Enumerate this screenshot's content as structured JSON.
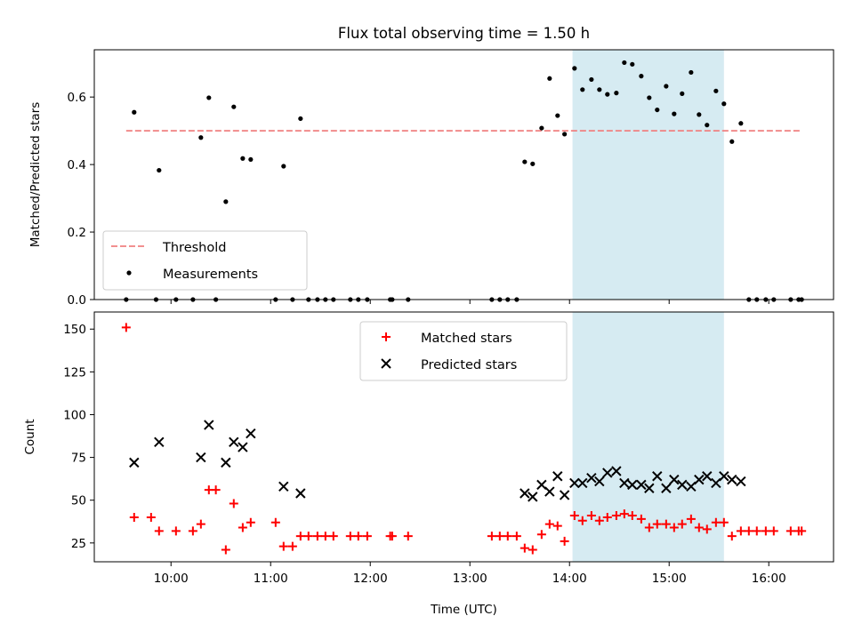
{
  "colors": {
    "threshold": "#f08080",
    "highlight": "#add8e6",
    "measurement": "#000000",
    "matched": "#ff0000",
    "predicted": "#000000"
  },
  "chart_data": [
    {
      "type": "scatter",
      "title": "Flux total observing time = 1.50 h",
      "xlabel": "",
      "ylabel": "Matched/Predicted stars",
      "x_units": "hours UTC",
      "xlim": [
        9.23,
        16.65
      ],
      "ylim": [
        0,
        0.74
      ],
      "yticks": [
        0.0,
        0.2,
        0.4,
        0.6
      ],
      "yticklabels": [
        "0.0",
        "0.2",
        "0.4",
        "0.6"
      ],
      "highlight_span": [
        14.03,
        15.55
      ],
      "threshold": {
        "name": "Threshold",
        "y": 0.5,
        "x_range": [
          9.55,
          16.33
        ]
      },
      "legend": {
        "position": "lower-left",
        "entries": [
          "Threshold",
          "Measurements"
        ]
      },
      "series": [
        {
          "name": "Measurements",
          "marker": "dot",
          "points": [
            [
              9.55,
              0.0
            ],
            [
              9.63,
              0.555
            ],
            [
              9.85,
              0.0
            ],
            [
              9.88,
              0.383
            ],
            [
              10.05,
              0.0
            ],
            [
              10.22,
              0.0
            ],
            [
              10.3,
              0.48
            ],
            [
              10.38,
              0.598
            ],
            [
              10.45,
              0.0
            ],
            [
              10.55,
              0.29
            ],
            [
              10.63,
              0.571
            ],
            [
              10.72,
              0.418
            ],
            [
              10.8,
              0.415
            ],
            [
              11.05,
              0.0
            ],
            [
              11.13,
              0.395
            ],
            [
              11.22,
              0.0
            ],
            [
              11.3,
              0.536
            ],
            [
              11.38,
              0.0
            ],
            [
              11.47,
              0.0
            ],
            [
              11.55,
              0.0
            ],
            [
              11.63,
              0.0
            ],
            [
              11.8,
              0.0
            ],
            [
              11.88,
              0.0
            ],
            [
              11.97,
              0.0
            ],
            [
              12.2,
              0.0
            ],
            [
              12.22,
              0.0
            ],
            [
              12.38,
              0.0
            ],
            [
              13.22,
              0.0
            ],
            [
              13.3,
              0.0
            ],
            [
              13.38,
              0.0
            ],
            [
              13.47,
              0.0
            ],
            [
              13.55,
              0.408
            ],
            [
              13.63,
              0.402
            ],
            [
              13.72,
              0.508
            ],
            [
              13.8,
              0.655
            ],
            [
              13.88,
              0.545
            ],
            [
              13.95,
              0.49
            ],
            [
              14.05,
              0.685
            ],
            [
              14.13,
              0.622
            ],
            [
              14.22,
              0.652
            ],
            [
              14.3,
              0.622
            ],
            [
              14.38,
              0.608
            ],
            [
              14.47,
              0.612
            ],
            [
              14.55,
              0.702
            ],
            [
              14.63,
              0.697
            ],
            [
              14.72,
              0.662
            ],
            [
              14.8,
              0.598
            ],
            [
              14.88,
              0.562
            ],
            [
              14.97,
              0.632
            ],
            [
              15.05,
              0.55
            ],
            [
              15.13,
              0.61
            ],
            [
              15.22,
              0.673
            ],
            [
              15.3,
              0.548
            ],
            [
              15.38,
              0.517
            ],
            [
              15.47,
              0.618
            ],
            [
              15.55,
              0.58
            ],
            [
              15.63,
              0.468
            ],
            [
              15.72,
              0.522
            ],
            [
              15.8,
              0.0
            ],
            [
              15.88,
              0.0
            ],
            [
              15.97,
              0.0
            ],
            [
              16.05,
              0.0
            ],
            [
              16.22,
              0.0
            ],
            [
              16.3,
              0.0
            ],
            [
              16.33,
              0.0
            ]
          ]
        }
      ]
    },
    {
      "type": "scatter",
      "title": "",
      "xlabel": "Time (UTC)",
      "ylabel": "Count",
      "x_units": "hours UTC",
      "xlim": [
        9.23,
        16.65
      ],
      "ylim": [
        14,
        160
      ],
      "xticks": [
        10,
        11,
        12,
        13,
        14,
        15,
        16
      ],
      "xticklabels": [
        "10:00",
        "11:00",
        "12:00",
        "13:00",
        "14:00",
        "15:00",
        "16:00"
      ],
      "yticks": [
        25,
        50,
        75,
        100,
        125,
        150
      ],
      "yticklabels": [
        "25",
        "50",
        "75",
        "100",
        "125",
        "150"
      ],
      "highlight_span": [
        14.03,
        15.55
      ],
      "legend": {
        "position": "upper-center",
        "entries": [
          "Matched stars",
          "Predicted stars"
        ]
      },
      "series": [
        {
          "name": "Matched stars",
          "marker": "plus",
          "points": [
            [
              9.55,
              151
            ],
            [
              9.63,
              40
            ],
            [
              9.8,
              40
            ],
            [
              9.88,
              32
            ],
            [
              10.05,
              32
            ],
            [
              10.22,
              32
            ],
            [
              10.3,
              36
            ],
            [
              10.38,
              56
            ],
            [
              10.45,
              56
            ],
            [
              10.55,
              21
            ],
            [
              10.63,
              48
            ],
            [
              10.72,
              34
            ],
            [
              10.8,
              37
            ],
            [
              11.05,
              37
            ],
            [
              11.13,
              23
            ],
            [
              11.22,
              23
            ],
            [
              11.3,
              29
            ],
            [
              11.38,
              29
            ],
            [
              11.47,
              29
            ],
            [
              11.55,
              29
            ],
            [
              11.63,
              29
            ],
            [
              11.8,
              29
            ],
            [
              11.88,
              29
            ],
            [
              11.97,
              29
            ],
            [
              12.2,
              29
            ],
            [
              12.22,
              29
            ],
            [
              12.38,
              29
            ],
            [
              13.22,
              29
            ],
            [
              13.3,
              29
            ],
            [
              13.38,
              29
            ],
            [
              13.47,
              29
            ],
            [
              13.55,
              22
            ],
            [
              13.63,
              21
            ],
            [
              13.72,
              30
            ],
            [
              13.8,
              36
            ],
            [
              13.88,
              35
            ],
            [
              13.95,
              26
            ],
            [
              14.05,
              41
            ],
            [
              14.13,
              38
            ],
            [
              14.22,
              41
            ],
            [
              14.3,
              38
            ],
            [
              14.38,
              40
            ],
            [
              14.47,
              41
            ],
            [
              14.55,
              42
            ],
            [
              14.63,
              41
            ],
            [
              14.72,
              39
            ],
            [
              14.8,
              34
            ],
            [
              14.88,
              36
            ],
            [
              14.97,
              36
            ],
            [
              15.05,
              34
            ],
            [
              15.13,
              36
            ],
            [
              15.22,
              39
            ],
            [
              15.3,
              34
            ],
            [
              15.38,
              33
            ],
            [
              15.47,
              37
            ],
            [
              15.55,
              37
            ],
            [
              15.63,
              29
            ],
            [
              15.72,
              32
            ],
            [
              15.8,
              32
            ],
            [
              15.88,
              32
            ],
            [
              15.97,
              32
            ],
            [
              16.05,
              32
            ],
            [
              16.22,
              32
            ],
            [
              16.3,
              32
            ],
            [
              16.33,
              32
            ]
          ]
        },
        {
          "name": "Predicted stars",
          "marker": "x",
          "points": [
            [
              9.63,
              72
            ],
            [
              9.88,
              84
            ],
            [
              10.3,
              75
            ],
            [
              10.38,
              94
            ],
            [
              10.55,
              72
            ],
            [
              10.63,
              84
            ],
            [
              10.72,
              81
            ],
            [
              10.8,
              89
            ],
            [
              11.13,
              58
            ],
            [
              11.3,
              54
            ],
            [
              13.55,
              54
            ],
            [
              13.63,
              52
            ],
            [
              13.72,
              59
            ],
            [
              13.8,
              55
            ],
            [
              13.88,
              64
            ],
            [
              13.95,
              53
            ],
            [
              14.05,
              60
            ],
            [
              14.13,
              60
            ],
            [
              14.22,
              63
            ],
            [
              14.3,
              61
            ],
            [
              14.38,
              66
            ],
            [
              14.47,
              67
            ],
            [
              14.55,
              60
            ],
            [
              14.63,
              59
            ],
            [
              14.72,
              59
            ],
            [
              14.8,
              57
            ],
            [
              14.88,
              64
            ],
            [
              14.97,
              57
            ],
            [
              15.05,
              62
            ],
            [
              15.13,
              59
            ],
            [
              15.22,
              58
            ],
            [
              15.3,
              62
            ],
            [
              15.38,
              64
            ],
            [
              15.47,
              60
            ],
            [
              15.55,
              64
            ],
            [
              15.63,
              62
            ],
            [
              15.72,
              61
            ]
          ]
        }
      ]
    }
  ]
}
